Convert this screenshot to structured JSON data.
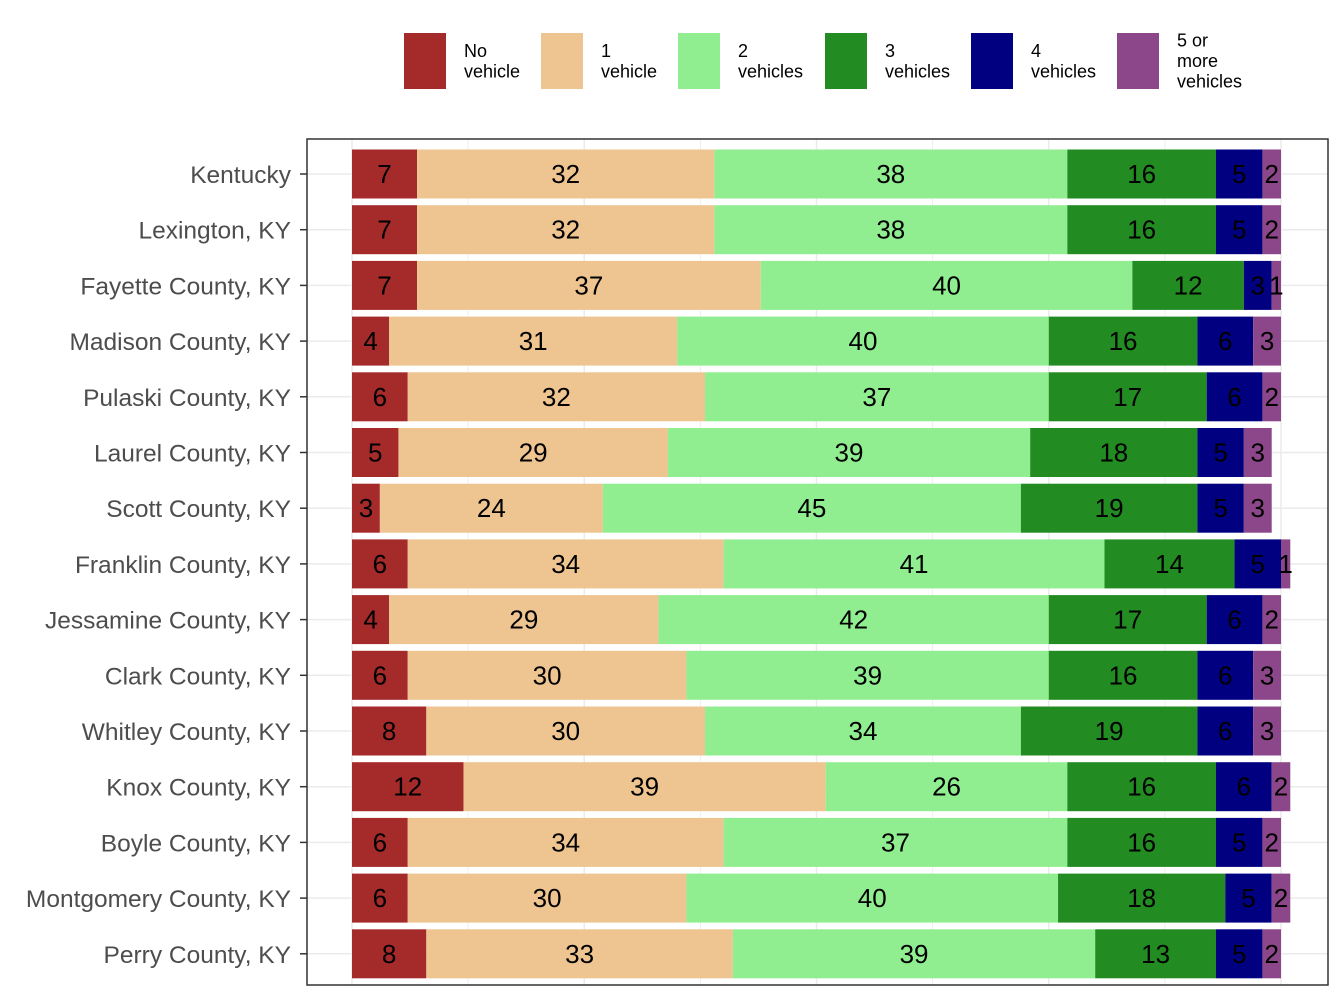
{
  "chart_data": {
    "type": "bar",
    "orientation": "horizontal",
    "stacked": true,
    "xlim": [
      0,
      100
    ],
    "grid": true,
    "legend_position": "top",
    "title": "",
    "xlabel": "",
    "ylabel": "",
    "categories": [
      "Kentucky",
      "Lexington, KY",
      "Fayette County, KY",
      "Madison County, KY",
      "Pulaski County, KY",
      "Laurel County, KY",
      "Scott County, KY",
      "Franklin County, KY",
      "Jessamine County, KY",
      "Clark County, KY",
      "Whitley County, KY",
      "Knox County, KY",
      "Boyle County, KY",
      "Montgomery County, KY",
      "Perry County, KY"
    ],
    "series": [
      {
        "name": "No vehicle",
        "legend_lines": [
          "No",
          "vehicle"
        ],
        "color": "#A52A2A",
        "values": [
          7,
          7,
          7,
          4,
          6,
          5,
          3,
          6,
          4,
          6,
          8,
          12,
          6,
          6,
          8
        ]
      },
      {
        "name": "1 vehicle",
        "legend_lines": [
          "1",
          "vehicle"
        ],
        "color": "#EEC591",
        "values": [
          32,
          32,
          37,
          31,
          32,
          29,
          24,
          34,
          29,
          30,
          30,
          39,
          34,
          30,
          33
        ]
      },
      {
        "name": "2 vehicles",
        "legend_lines": [
          "2",
          "vehicles"
        ],
        "color": "#90EE90",
        "values": [
          38,
          38,
          40,
          40,
          37,
          39,
          45,
          41,
          42,
          39,
          34,
          26,
          37,
          40,
          39
        ]
      },
      {
        "name": "3 vehicles",
        "legend_lines": [
          "3",
          "vehicles"
        ],
        "color": "#228B22",
        "values": [
          16,
          16,
          12,
          16,
          17,
          18,
          19,
          14,
          17,
          16,
          19,
          16,
          16,
          18,
          13
        ]
      },
      {
        "name": "4 vehicles",
        "legend_lines": [
          "4",
          "vehicles"
        ],
        "color": "#000080",
        "values": [
          5,
          5,
          3,
          6,
          6,
          5,
          5,
          5,
          6,
          6,
          6,
          6,
          5,
          5,
          5
        ]
      },
      {
        "name": "5 or more vehicles",
        "legend_lines": [
          "5 or",
          "more",
          "vehicles"
        ],
        "color": "#8B4789",
        "values": [
          2,
          2,
          1,
          3,
          2,
          3,
          3,
          1,
          2,
          3,
          3,
          2,
          2,
          2,
          2
        ]
      }
    ]
  }
}
